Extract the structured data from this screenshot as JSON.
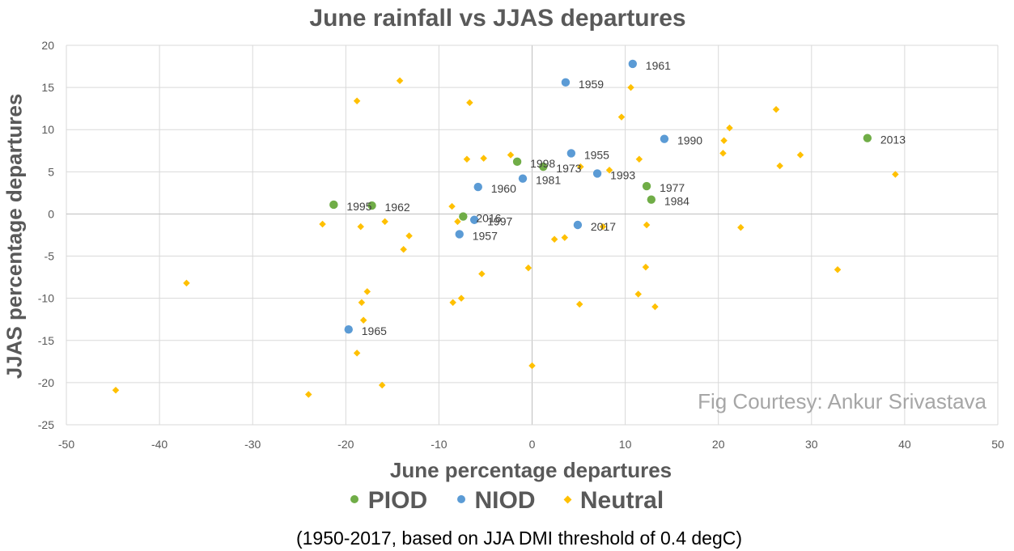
{
  "chart_data": {
    "type": "scatter",
    "title": "June rainfall vs JJAS departures",
    "xlabel": "June percentage departures",
    "ylabel": "JJAS percentage departures",
    "xlim": [
      -50,
      50
    ],
    "ylim": [
      -25,
      20
    ],
    "x_ticks": [
      -50,
      -40,
      -30,
      -20,
      -10,
      0,
      10,
      20,
      30,
      40,
      50
    ],
    "y_ticks": [
      -25,
      -20,
      -15,
      -10,
      -5,
      0,
      5,
      10,
      15,
      20
    ],
    "grid": true,
    "legend_position": "bottom",
    "annotation": "Fig Courtesy: Ankur Srivastava",
    "footnote": "(1950-2017, based on JJA DMI threshold of 0.4 degC)",
    "series": [
      {
        "name": "PIOD",
        "color": "#70ad47",
        "marker": "circle",
        "points": [
          {
            "x": -21.3,
            "y": 1.1,
            "label": "1995"
          },
          {
            "x": -17.2,
            "y": 1.0,
            "label": "1962"
          },
          {
            "x": -1.6,
            "y": 6.2,
            "label": "1998"
          },
          {
            "x": 1.2,
            "y": 5.6,
            "label": "1973"
          },
          {
            "x": -7.4,
            "y": -0.3,
            "label": "2016"
          },
          {
            "x": 12.3,
            "y": 3.3,
            "label": "1977"
          },
          {
            "x": 12.8,
            "y": 1.7,
            "label": "1984"
          },
          {
            "x": 36.0,
            "y": 9.0,
            "label": "2013"
          }
        ]
      },
      {
        "name": "NIOD",
        "color": "#5b9bd5",
        "marker": "circle",
        "points": [
          {
            "x": 10.8,
            "y": 17.8,
            "label": "1961"
          },
          {
            "x": 3.6,
            "y": 15.6,
            "label": "1959"
          },
          {
            "x": 14.2,
            "y": 8.9,
            "label": "1990"
          },
          {
            "x": 4.2,
            "y": 7.2,
            "label": "1955"
          },
          {
            "x": 7.0,
            "y": 4.8,
            "label": "1993"
          },
          {
            "x": -1.0,
            "y": 4.2,
            "label": "1981"
          },
          {
            "x": -5.8,
            "y": 3.2,
            "label": "1960"
          },
          {
            "x": -6.2,
            "y": -0.7,
            "label": "1997"
          },
          {
            "x": -7.8,
            "y": -2.4,
            "label": "1957"
          },
          {
            "x": 4.9,
            "y": -1.3,
            "label": "2017"
          },
          {
            "x": -19.7,
            "y": -13.7,
            "label": "1965"
          }
        ]
      },
      {
        "name": "Neutral",
        "color": "#ffc000",
        "marker": "diamond",
        "points": [
          {
            "x": -44.7,
            "y": -20.9
          },
          {
            "x": -37.1,
            "y": -8.2
          },
          {
            "x": -24.0,
            "y": -21.4
          },
          {
            "x": -22.5,
            "y": -1.2
          },
          {
            "x": -18.8,
            "y": 13.4
          },
          {
            "x": -18.8,
            "y": -16.5
          },
          {
            "x": -18.4,
            "y": -1.5
          },
          {
            "x": -18.3,
            "y": -10.5
          },
          {
            "x": -18.1,
            "y": -12.6
          },
          {
            "x": -17.7,
            "y": -9.2
          },
          {
            "x": -16.1,
            "y": -20.3
          },
          {
            "x": -15.8,
            "y": -0.9
          },
          {
            "x": -14.2,
            "y": 15.8
          },
          {
            "x": -13.8,
            "y": -4.2
          },
          {
            "x": -13.2,
            "y": -2.6
          },
          {
            "x": -8.6,
            "y": 0.9
          },
          {
            "x": -8.5,
            "y": -10.5
          },
          {
            "x": -8.0,
            "y": -0.9
          },
          {
            "x": -7.6,
            "y": -10.0
          },
          {
            "x": -7.0,
            "y": 6.5
          },
          {
            "x": -6.7,
            "y": 13.2
          },
          {
            "x": -5.4,
            "y": -7.1
          },
          {
            "x": -5.2,
            "y": 6.6
          },
          {
            "x": -2.3,
            "y": 7.0
          },
          {
            "x": -0.4,
            "y": -6.4
          },
          {
            "x": 0.0,
            "y": -18.0
          },
          {
            "x": 2.4,
            "y": -3.0
          },
          {
            "x": 3.5,
            "y": -2.8
          },
          {
            "x": 5.1,
            "y": -10.7
          },
          {
            "x": 5.2,
            "y": 5.6
          },
          {
            "x": 7.6,
            "y": -1.5
          },
          {
            "x": 8.3,
            "y": 5.2
          },
          {
            "x": 9.6,
            "y": 11.5
          },
          {
            "x": 10.6,
            "y": 15.0
          },
          {
            "x": 11.4,
            "y": -9.5
          },
          {
            "x": 11.5,
            "y": 6.5
          },
          {
            "x": 12.2,
            "y": -6.3
          },
          {
            "x": 12.3,
            "y": -1.3
          },
          {
            "x": 13.2,
            "y": -11.0
          },
          {
            "x": 14.3,
            "y": 8.9
          },
          {
            "x": 20.5,
            "y": 7.2
          },
          {
            "x": 20.6,
            "y": 8.7
          },
          {
            "x": 21.2,
            "y": 10.2
          },
          {
            "x": 22.4,
            "y": -1.6
          },
          {
            "x": 26.2,
            "y": 12.4
          },
          {
            "x": 26.6,
            "y": 5.7
          },
          {
            "x": 28.8,
            "y": 7.0
          },
          {
            "x": 32.8,
            "y": -6.6
          },
          {
            "x": 39.0,
            "y": 4.7
          }
        ]
      }
    ]
  }
}
